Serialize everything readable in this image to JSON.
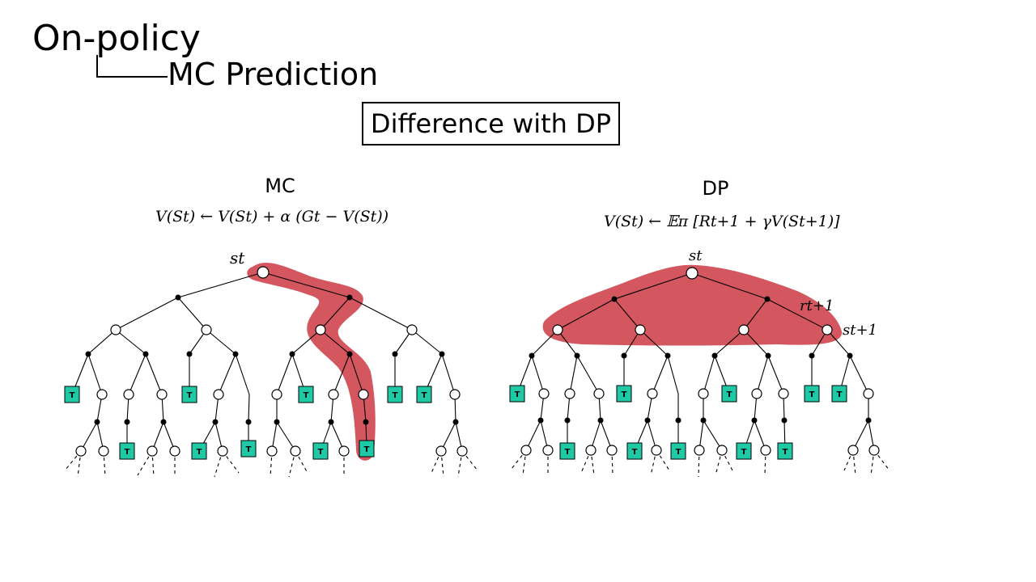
{
  "slide": {
    "title": "On-policy",
    "subtitle": "MC Prediction",
    "boxed_heading": "Difference with DP"
  },
  "panels": {
    "mc": {
      "label": "MC",
      "formula": "V(St) ← V(St) + α (Gt − V(St))",
      "state_label": "st"
    },
    "dp": {
      "label": "DP",
      "formula": "V(St) ← 𝔼π [Rt+1 + γV(St+1)]",
      "state_label": "st",
      "reward_label": "rt+1",
      "next_state_label": "st+1"
    }
  },
  "terminal_label": "T",
  "colors": {
    "highlight": "#d45760",
    "terminal_fill": "#1fc9a6",
    "line": "#000000"
  }
}
